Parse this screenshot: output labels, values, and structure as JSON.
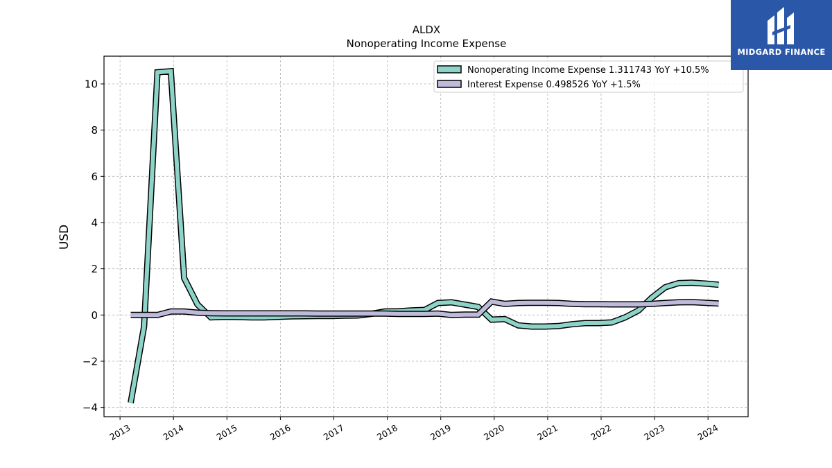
{
  "chart_data": {
    "type": "line",
    "title": "ALDX",
    "subtitle": "Nonoperating Income Expense",
    "xlabel": "",
    "ylabel": "USD",
    "xlim": [
      2012.7,
      2024.75
    ],
    "ylim": [
      -4.4,
      11.2
    ],
    "x_ticks": [
      "2013",
      "2014",
      "2015",
      "2016",
      "2017",
      "2018",
      "2019",
      "2020",
      "2021",
      "2022",
      "2023",
      "2024"
    ],
    "y_ticks": [
      "−4",
      "−2",
      "0",
      "2",
      "4",
      "6",
      "8",
      "10"
    ],
    "y_tick_values": [
      -4,
      -2,
      0,
      2,
      4,
      6,
      8,
      10
    ],
    "grid": true,
    "legend_position": "top-right",
    "series": [
      {
        "name": "Nonoperating Income Expense  1.311743 YoY +10.5%",
        "color": "#8dd3c7",
        "x": [
          2013.2,
          2013.45,
          2013.7,
          2013.95,
          2014.2,
          2014.45,
          2014.7,
          2014.95,
          2015.2,
          2015.45,
          2015.7,
          2015.95,
          2016.2,
          2016.45,
          2016.7,
          2016.95,
          2017.2,
          2017.45,
          2017.7,
          2017.95,
          2018.2,
          2018.45,
          2018.7,
          2018.95,
          2019.2,
          2019.45,
          2019.7,
          2019.95,
          2020.2,
          2020.45,
          2020.7,
          2020.95,
          2021.2,
          2021.45,
          2021.7,
          2021.95,
          2022.2,
          2022.45,
          2022.7,
          2022.95,
          2023.2,
          2023.45,
          2023.7,
          2023.95,
          2024.2
        ],
        "values": [
          -3.8,
          -0.5,
          10.5,
          10.55,
          1.6,
          0.45,
          -0.1,
          -0.08,
          -0.09,
          -0.1,
          -0.1,
          -0.08,
          -0.06,
          -0.05,
          -0.04,
          -0.04,
          -0.03,
          -0.02,
          0.05,
          0.15,
          0.16,
          0.2,
          0.22,
          0.52,
          0.55,
          0.45,
          0.35,
          -0.2,
          -0.18,
          -0.45,
          -0.5,
          -0.5,
          -0.48,
          -0.4,
          -0.35,
          -0.35,
          -0.32,
          -0.1,
          0.2,
          0.75,
          1.2,
          1.38,
          1.4,
          1.36,
          1.31
        ]
      },
      {
        "name": "Interest Expense  0.498526 YoY +1.5%",
        "color": "#bebada",
        "x": [
          2013.2,
          2013.45,
          2013.7,
          2013.95,
          2014.2,
          2014.45,
          2014.7,
          2014.95,
          2015.2,
          2015.45,
          2015.7,
          2015.95,
          2016.2,
          2016.45,
          2016.7,
          2016.95,
          2017.2,
          2017.45,
          2017.7,
          2017.95,
          2018.2,
          2018.45,
          2018.7,
          2018.95,
          2019.2,
          2019.45,
          2019.7,
          2019.95,
          2020.2,
          2020.45,
          2020.7,
          2020.95,
          2021.2,
          2021.45,
          2021.7,
          2021.95,
          2022.2,
          2022.45,
          2022.7,
          2022.95,
          2023.2,
          2023.45,
          2023.7,
          2023.95,
          2024.2
        ],
        "values": [
          0.0,
          0.0,
          0.0,
          0.15,
          0.15,
          0.1,
          0.08,
          0.07,
          0.07,
          0.07,
          0.07,
          0.07,
          0.07,
          0.07,
          0.06,
          0.06,
          0.06,
          0.06,
          0.06,
          0.06,
          0.05,
          0.05,
          0.05,
          0.06,
          0.0,
          0.02,
          0.02,
          0.58,
          0.48,
          0.52,
          0.53,
          0.53,
          0.52,
          0.48,
          0.47,
          0.47,
          0.46,
          0.46,
          0.46,
          0.48,
          0.52,
          0.55,
          0.56,
          0.53,
          0.5
        ]
      }
    ]
  },
  "logo": {
    "text": "MIDGARD FINANCE",
    "background": "#2a57a8"
  }
}
